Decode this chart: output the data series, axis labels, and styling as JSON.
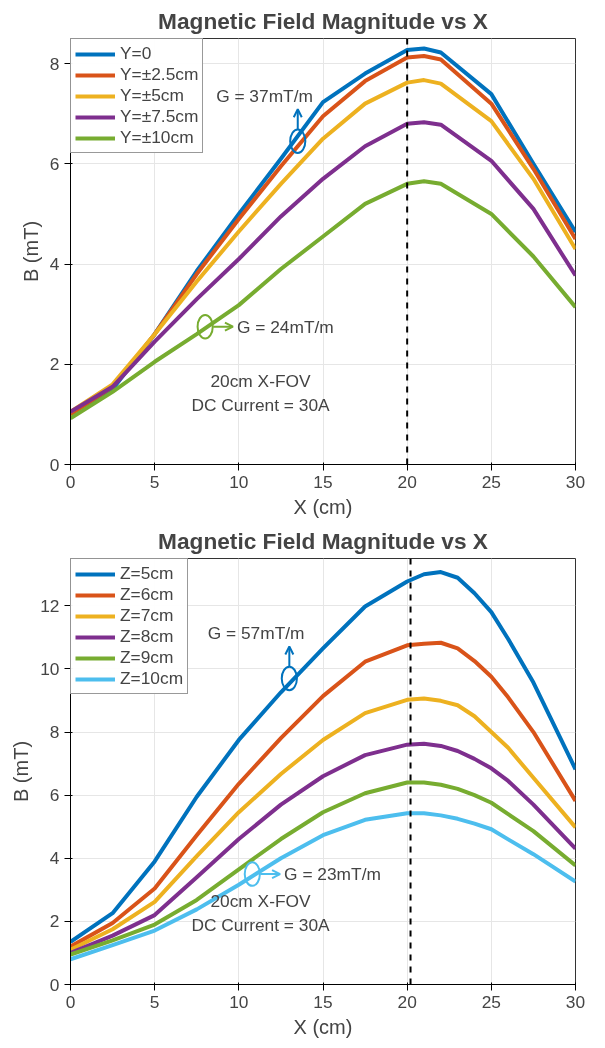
{
  "chart_data": [
    {
      "type": "line",
      "title": "Magnetic Field Magnitude vs X",
      "xlabel": "X (cm)",
      "ylabel": "B (mT)",
      "x": [
        0,
        2.5,
        5,
        7.5,
        10,
        12.5,
        15,
        17.5,
        20,
        21,
        22,
        25,
        27.5,
        30
      ],
      "xlim": [
        0,
        30
      ],
      "ylim": [
        0,
        8.5
      ],
      "xticks": [
        0,
        5,
        10,
        15,
        20,
        25,
        30
      ],
      "yticks": [
        0,
        2,
        4,
        6,
        8
      ],
      "grid": true,
      "legend": "top left",
      "line_style": "solid",
      "marker": "none",
      "series": [
        {
          "name": "Y=0",
          "color": "#0072bd",
          "values": [
            1.02,
            1.5,
            2.6,
            3.86,
            5.0,
            6.1,
            7.23,
            7.8,
            8.27,
            8.3,
            8.22,
            7.39,
            6.0,
            4.64
          ]
        },
        {
          "name": "Y=±2.5cm",
          "color": "#d95319",
          "values": [
            1.0,
            1.55,
            2.6,
            3.8,
            4.9,
            5.95,
            6.95,
            7.65,
            8.12,
            8.15,
            8.08,
            7.2,
            5.9,
            4.5
          ]
        },
        {
          "name": "Y=±5cm",
          "color": "#edb120",
          "values": [
            1.05,
            1.6,
            2.6,
            3.65,
            4.65,
            5.6,
            6.5,
            7.2,
            7.62,
            7.67,
            7.6,
            6.85,
            5.7,
            4.3
          ]
        },
        {
          "name": "Y=±7.5cm",
          "color": "#7e2f8e",
          "values": [
            1.05,
            1.55,
            2.45,
            3.3,
            4.1,
            4.95,
            5.7,
            6.35,
            6.8,
            6.83,
            6.78,
            6.06,
            5.1,
            3.77
          ]
        },
        {
          "name": "Y=±10cm",
          "color": "#77ac30",
          "values": [
            0.92,
            1.45,
            2.05,
            2.6,
            3.18,
            3.9,
            4.55,
            5.2,
            5.6,
            5.65,
            5.6,
            5.0,
            4.15,
            3.14
          ]
        }
      ],
      "ref_lines": [
        {
          "axis": "x",
          "value": 20,
          "color": "#000000",
          "line_style": "dashed"
        }
      ],
      "annotations": [
        {
          "text": "G = 37mT/m",
          "x": 13.5,
          "y": 6.45
        },
        {
          "text": "G = 24mT/m",
          "x": 8,
          "y": 2.75
        },
        "20cm X-FOV",
        "DC Current = 30A"
      ]
    },
    {
      "type": "line",
      "title": "Magnetic Field Magnitude vs X",
      "xlabel": "X (cm)",
      "ylabel": "B (mT)",
      "x": [
        0,
        2.5,
        5,
        7.5,
        10,
        12.5,
        15,
        17.5,
        20,
        21,
        22,
        23,
        24,
        25,
        26,
        27.5,
        30
      ],
      "xlim": [
        0,
        30
      ],
      "ylim": [
        0,
        13.5
      ],
      "xticks": [
        0,
        5,
        10,
        15,
        20,
        25,
        30
      ],
      "yticks": [
        0,
        2,
        4,
        6,
        8,
        10,
        12
      ],
      "grid": true,
      "legend": "top left",
      "line_style": "solid",
      "marker": "none",
      "series": [
        {
          "name": "Z=5cm",
          "color": "#0072bd",
          "values": [
            1.35,
            2.26,
            3.9,
            5.95,
            7.75,
            9.26,
            10.65,
            11.98,
            12.77,
            13.0,
            13.07,
            12.89,
            12.4,
            11.8,
            10.95,
            9.57,
            6.82
          ]
        },
        {
          "name": "Z=6cm",
          "color": "#d95319",
          "values": [
            1.2,
            1.95,
            3.04,
            4.73,
            6.36,
            7.81,
            9.14,
            10.23,
            10.75,
            10.8,
            10.83,
            10.65,
            10.25,
            9.75,
            9.1,
            8.0,
            5.82
          ]
        },
        {
          "name": "Z=7cm",
          "color": "#edb120",
          "values": [
            1.1,
            1.75,
            2.62,
            4.07,
            5.46,
            6.67,
            7.75,
            8.6,
            9.02,
            9.06,
            8.99,
            8.85,
            8.5,
            8.0,
            7.5,
            6.55,
            4.98
          ]
        },
        {
          "name": "Z=8cm",
          "color": "#7e2f8e",
          "values": [
            1.0,
            1.55,
            2.2,
            3.4,
            4.61,
            5.7,
            6.6,
            7.27,
            7.6,
            7.63,
            7.56,
            7.4,
            7.15,
            6.85,
            6.45,
            5.7,
            4.31
          ]
        },
        {
          "name": "Z=9cm",
          "color": "#77ac30",
          "values": [
            0.95,
            1.4,
            1.9,
            2.68,
            3.65,
            4.61,
            5.46,
            6.06,
            6.4,
            6.4,
            6.33,
            6.2,
            6.0,
            5.76,
            5.4,
            4.86,
            3.77
          ]
        },
        {
          "name": "Z=10cm",
          "color": "#4dbeee",
          "values": [
            0.8,
            1.25,
            1.71,
            2.38,
            3.16,
            4.0,
            4.73,
            5.22,
            5.43,
            5.43,
            5.36,
            5.25,
            5.1,
            4.92,
            4.6,
            4.13,
            3.26
          ]
        }
      ],
      "ref_lines": [
        {
          "axis": "x",
          "value": 20.2,
          "color": "#000000",
          "line_style": "dashed"
        }
      ],
      "annotations": [
        {
          "text": "G = 57mT/m",
          "x": 13,
          "y": 9.7
        },
        {
          "text": "G = 23mT/m",
          "x": 10.8,
          "y": 3.5
        },
        "20cm X-FOV",
        "DC Current = 30A"
      ]
    }
  ]
}
